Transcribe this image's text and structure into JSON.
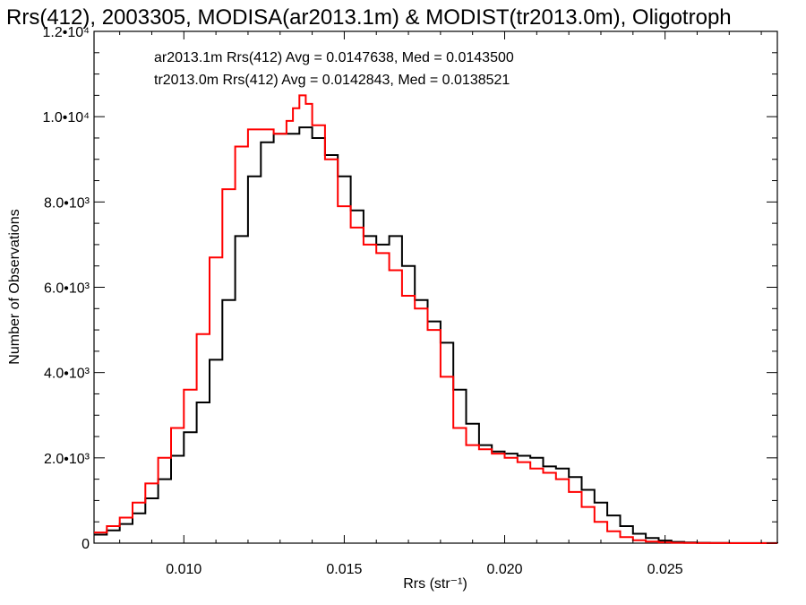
{
  "chart_data": {
    "type": "line",
    "title": "Rrs(412), 2003305, MODISA(ar2013.1m) & MODIST(tr2013.0m), Oligotroph",
    "xlabel": "Rrs (str⁻¹)",
    "ylabel": "Number of Observations",
    "xlim": [
      0.0072,
      0.0285
    ],
    "ylim": [
      0,
      12000
    ],
    "x_ticks": [
      {
        "value": 0.01,
        "label": "0.010"
      },
      {
        "value": 0.015,
        "label": "0.015"
      },
      {
        "value": 0.02,
        "label": "0.020"
      },
      {
        "value": 0.025,
        "label": "0.025"
      }
    ],
    "y_ticks": [
      {
        "value": 0,
        "label": "0"
      },
      {
        "value": 2000,
        "label": "2.0•10³"
      },
      {
        "value": 4000,
        "label": "4.0•10³"
      },
      {
        "value": 6000,
        "label": "6.0•10³"
      },
      {
        "value": 8000,
        "label": "8.0•10³"
      },
      {
        "value": 10000,
        "label": "1.0•10⁴"
      },
      {
        "value": 12000,
        "label": "1.2•10⁴"
      }
    ],
    "annotations": [
      {
        "text": "ar2013.1m Rrs(412) Avg = 0.0147638, Med = 0.0143500",
        "color": "#000000"
      },
      {
        "text": "tr2013.0m Rrs(412) Avg = 0.0142843, Med = 0.0138521",
        "color": "#ff0000"
      }
    ],
    "series": [
      {
        "color": "#000000",
        "x": [
          0.0072,
          0.0076,
          0.008,
          0.0084,
          0.0088,
          0.0092,
          0.0096,
          0.01,
          0.0104,
          0.0108,
          0.0112,
          0.0116,
          0.012,
          0.0124,
          0.0128,
          0.0132,
          0.0136,
          0.014,
          0.0144,
          0.0148,
          0.0152,
          0.0156,
          0.016,
          0.0164,
          0.0168,
          0.0172,
          0.0176,
          0.018,
          0.0184,
          0.0188,
          0.0192,
          0.0196,
          0.02,
          0.0204,
          0.0208,
          0.0212,
          0.0216,
          0.022,
          0.0224,
          0.0228,
          0.0232,
          0.0236,
          0.024,
          0.0244,
          0.0248,
          0.0252,
          0.0256,
          0.026,
          0.0264,
          0.027,
          0.0285
        ],
        "y": [
          200,
          300,
          450,
          700,
          1050,
          1500,
          2050,
          2600,
          3300,
          4300,
          5700,
          7200,
          8600,
          9400,
          9600,
          9600,
          9750,
          9500,
          9100,
          8600,
          7800,
          7200,
          7000,
          7200,
          6500,
          5700,
          5200,
          4700,
          3600,
          2800,
          2300,
          2150,
          2100,
          2050,
          2000,
          1800,
          1750,
          1550,
          1250,
          950,
          650,
          400,
          220,
          120,
          60,
          30,
          15,
          8,
          4,
          2,
          0
        ]
      },
      {
        "color": "#ff0000",
        "x": [
          0.0072,
          0.0076,
          0.008,
          0.0084,
          0.0088,
          0.0092,
          0.0096,
          0.01,
          0.0104,
          0.0108,
          0.0112,
          0.0116,
          0.012,
          0.0124,
          0.0128,
          0.0132,
          0.0134,
          0.0136,
          0.0138,
          0.014,
          0.0144,
          0.0148,
          0.0152,
          0.0156,
          0.016,
          0.0164,
          0.0168,
          0.0172,
          0.0176,
          0.018,
          0.0184,
          0.0188,
          0.0192,
          0.0196,
          0.02,
          0.0204,
          0.0208,
          0.0212,
          0.0216,
          0.022,
          0.0224,
          0.0228,
          0.0232,
          0.0236,
          0.024,
          0.0244,
          0.0248,
          0.0252,
          0.0256,
          0.026,
          0.027,
          0.0285
        ],
        "y": [
          250,
          400,
          600,
          950,
          1400,
          2000,
          2700,
          3600,
          4900,
          6700,
          8300,
          9300,
          9700,
          9700,
          9600,
          9900,
          10200,
          10500,
          10300,
          9800,
          9000,
          7900,
          7400,
          7000,
          6800,
          6400,
          5800,
          5500,
          5000,
          3900,
          2700,
          2300,
          2200,
          2100,
          2000,
          1900,
          1750,
          1650,
          1500,
          1200,
          850,
          500,
          280,
          140,
          70,
          35,
          18,
          8,
          4,
          2,
          1,
          0
        ]
      }
    ]
  }
}
